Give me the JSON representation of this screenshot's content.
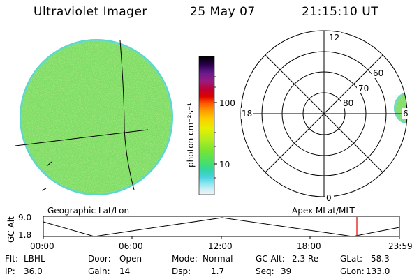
{
  "header": {
    "instrument": "Ultraviolet Imager",
    "date": "25 May 07",
    "time": "21:15:10 UT"
  },
  "colorbar": {
    "unit_label": "photon cm⁻²s⁻¹",
    "tick_labels": [
      "100",
      "10"
    ],
    "colors": [
      "#000000",
      "#2a0050",
      "#5a1a8c",
      "#8c1a8c",
      "#b00040",
      "#e00000",
      "#ff6000",
      "#ff9900",
      "#ffcc00",
      "#e6f000",
      "#b4ec1e",
      "#78e632",
      "#4ce064",
      "#32d7a0",
      "#46d2dc",
      "#8ce6f0",
      "#c8f0f5",
      "#f0f0f0"
    ]
  },
  "polar_plot": {
    "mlt_labels": {
      "top": "12",
      "left": "18",
      "right": "6",
      "bottom": "0"
    },
    "mlat_labels": [
      "60",
      "70",
      "80"
    ]
  },
  "geo_label": "Geographic Lat/Lon",
  "apex_label": "Apex MLat/MLT",
  "altitude_plot": {
    "axis_title": "GC Alt",
    "y_ticks": [
      "9.0",
      "1.8"
    ],
    "x_ticks": [
      "00:00",
      "06:00",
      "12:00",
      "18:00",
      "23:59"
    ]
  },
  "info": {
    "flt_label": "Flt:",
    "flt_value": "LBHL",
    "ip_label": "IP:",
    "ip_value": "36.0",
    "door_label": "Door:",
    "door_value": "Open",
    "gain_label": "Gain:",
    "gain_value": "14",
    "mode_label": "Mode:",
    "mode_value": "Normal",
    "dsp_label": "Dsp:",
    "dsp_value": "1.7",
    "gcalt_label": "GC Alt:",
    "gcalt_value": "2.3 Re",
    "seq_label": "Seq:",
    "seq_value": "39",
    "glat_label": "GLat:",
    "glat_value": "58.3",
    "glon_label": "GLon:",
    "glon_value": "133.0"
  }
}
